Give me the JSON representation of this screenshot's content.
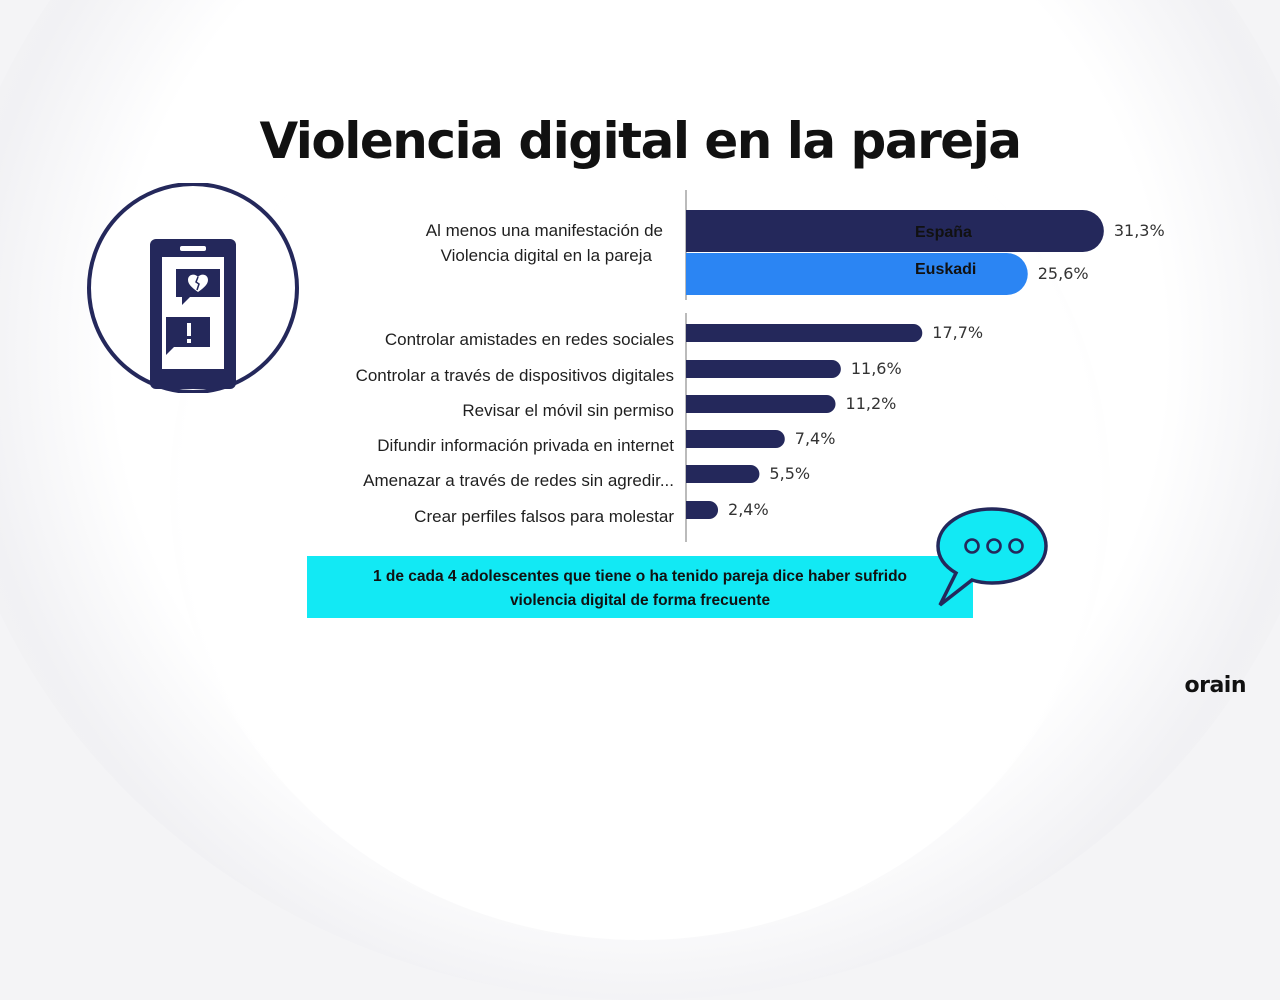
{
  "slide": {
    "title": "Violencia digital en la pareja",
    "logo": "orain",
    "callout_line1": "1 de cada 4 adolescentes que tiene o ha tenido pareja dice haber sufrido",
    "callout_line2": "violencia digital de forma frecuente"
  },
  "icons": {
    "phone": "phone-broken-heart-alert-icon",
    "bubble": "speech-bubble-dots-icon"
  },
  "colors": {
    "espana": "#24285b",
    "euskadi": "#2b85f3",
    "callout_bg": "#12e9f4"
  },
  "chart_data": {
    "type": "bar",
    "orientation": "horizontal",
    "legend": [
      "España",
      "Euskadi"
    ],
    "legend_position": "right",
    "groups": [
      {
        "category": [
          "Al menos una manifestación de",
          "Violencia digital en la pareja"
        ],
        "values": [
          {
            "series": "España",
            "value": 31.3,
            "label": "31,3%"
          },
          {
            "series": "Euskadi",
            "value": 25.6,
            "label": "25,6%"
          }
        ]
      }
    ],
    "categories": [
      "Controlar amistades en redes sociales",
      "Controlar a través de dispositivos digitales",
      "Revisar el móvil sin permiso",
      "Difundir información privada en internet",
      "Amenazar a través de redes sin agredir...",
      "Crear perfiles falsos  para molestar"
    ],
    "series": [
      {
        "name": "España",
        "values": [
          17.7,
          11.6,
          11.2,
          7.4,
          5.5,
          2.4
        ],
        "labels": [
          "17,7%",
          "11,6%",
          "11,2%",
          "7,4%",
          "5,5%",
          "2,4%"
        ]
      }
    ]
  }
}
